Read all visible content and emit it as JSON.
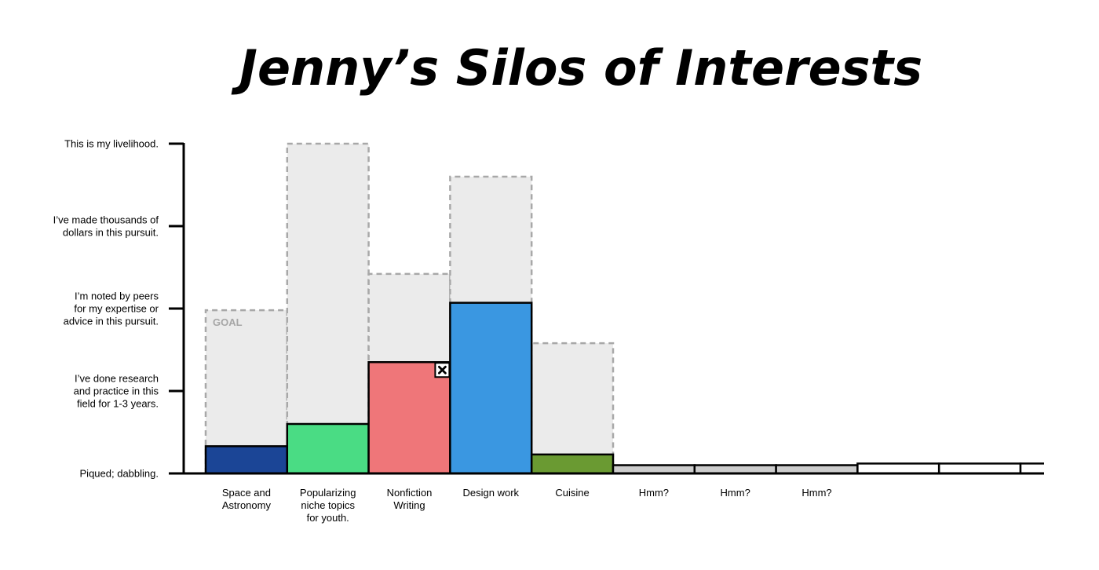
{
  "chart_data": {
    "type": "bar",
    "title": "Jenny’s Silos of Interests",
    "levels": [
      "Piqued; dabbling.",
      "I’ve done research\nand practice in this\nfield for 1-3 years.",
      "I’m noted by peers\nfor my expertise or\nadvice in this pursuit.",
      "I’ve made thousands of\ndollars in this pursuit.",
      "This is my livelihood."
    ],
    "ylim": [
      0,
      4
    ],
    "goal_label": "GOAL",
    "categories": [
      "Space and\nAstronomy",
      "Popularizing\nniche topics\nfor youth.",
      "Nonfiction\nWriting",
      "Design work",
      "Cuisine",
      "Hmm?",
      "Hmm?",
      "Hmm?",
      "",
      "",
      ""
    ],
    "series": [
      {
        "values": [
          0.33,
          0.6,
          1.35,
          2.07,
          0.23,
          0.1,
          0.1,
          0.1,
          0.12,
          0.12,
          0.12
        ]
      },
      {
        "values": [
          1.98,
          4.0,
          2.42,
          3.6,
          1.58,
          null,
          null,
          null,
          null,
          null,
          null
        ]
      }
    ],
    "colors": [
      "#1b4596",
      "#4adc84",
      "#ef7679",
      "#3a97e1",
      "#6a9a32",
      "#cccccc",
      "#cccccc",
      "#cccccc",
      "#ffffff",
      "#ffffff",
      "#ffffff"
    ],
    "goal_fill": "#ebebeb",
    "goal_stroke": "#a8a8a8",
    "marker_category": 2,
    "marker_icon": "x-icon"
  }
}
